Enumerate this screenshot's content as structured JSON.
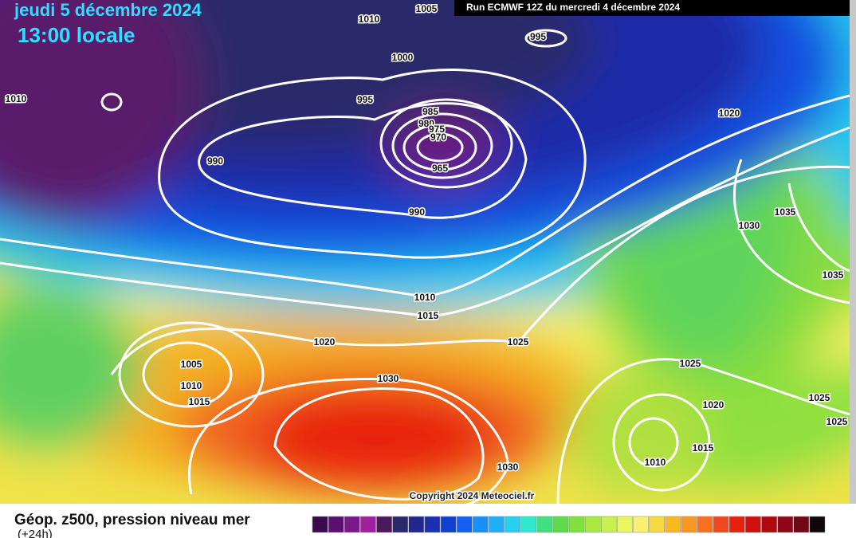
{
  "header": {
    "date": "jeudi 5 décembre 2024",
    "time": "13:00 locale",
    "run": "Run ECMWF 12Z du mercredi 4 décembre 2024"
  },
  "map": {
    "copyright": "Copyright 2024 Meteociel.fr",
    "contour_labels": [
      "1005",
      "1010",
      "995",
      "1000",
      "1010",
      "995",
      "985",
      "980",
      "975",
      "970",
      "965",
      "990",
      "990",
      "1020",
      "1035",
      "1030",
      "1035",
      "1010",
      "1015",
      "1020",
      "1025",
      "1005",
      "1010",
      "1015",
      "1030",
      "1025",
      "1020",
      "1025",
      "1025",
      "1010",
      "1015",
      "1030"
    ]
  },
  "footer": {
    "title": "Géop. z500, pression niveau mer",
    "lead": "(+24h)"
  }
}
